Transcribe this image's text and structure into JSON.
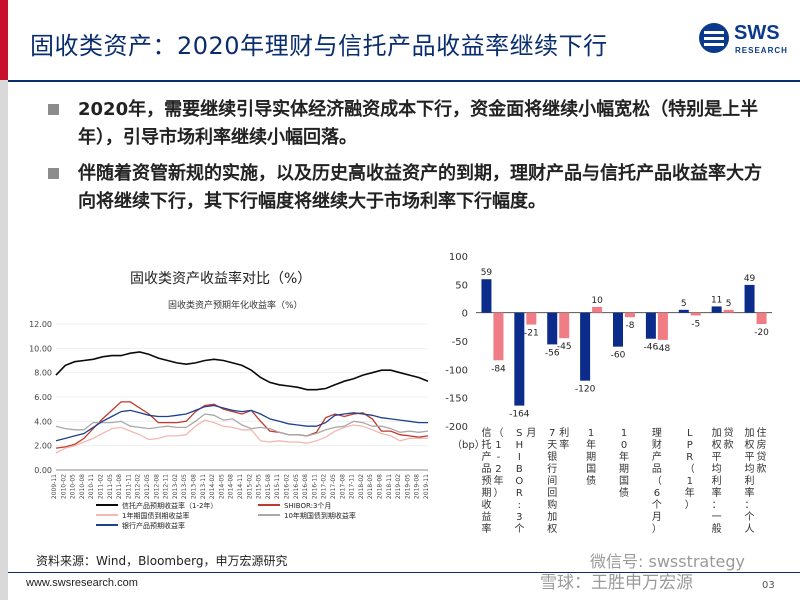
{
  "header": {
    "title": "固收类资产：2020年理财与信托产品收益率继续下行",
    "logo_text": "SWS",
    "logo_sub": "RESEARCH"
  },
  "bullets": [
    "2020年，需要继续引导实体经济融资成本下行，资金面将继续小幅宽松（特别是上半年），引导市场利率继续小幅回落。",
    "伴随着资管新规的实施，以及历史高收益资产的到期，理财产品与信托产品收益率大方向将继续下行，其下行幅度将继续大于市场利率下行幅度。"
  ],
  "footer": {
    "source": "资料来源：Wind，Bloomberg，申万宏源研究",
    "url": "www.swsresearch.com",
    "watermark1": "微信号: swsstrategy",
    "watermark2": "雪球：王胜申万宏源",
    "page": "03"
  },
  "colors": {
    "navy": "#0a2d6e",
    "accent_red": "#c8102e",
    "series_blue": "#0b2c8a",
    "series_pink": "#f07c85"
  },
  "chart_data": [
    {
      "type": "line",
      "title": "固收类资产收益率对比（%）",
      "subtitle": "固收类资产预期年化收益率（%）",
      "ylim": [
        0,
        12
      ],
      "yticks": [
        "0.00",
        "2.00",
        "4.00",
        "6.00",
        "8.00",
        "10.00",
        "12.00"
      ],
      "x": [
        "2009-11",
        "2010-02",
        "2010-05",
        "2010-08",
        "2010-11",
        "2011-02",
        "2011-05",
        "2011-08",
        "2011-11",
        "2012-02",
        "2012-05",
        "2012-08",
        "2012-11",
        "2013-02",
        "2013-05",
        "2013-08",
        "2013-11",
        "2014-02",
        "2014-05",
        "2014-08",
        "2014-11",
        "2015-02",
        "2015-05",
        "2015-08",
        "2015-11",
        "2016-02",
        "2016-05",
        "2016-08",
        "2016-11",
        "2017-02",
        "2017-05",
        "2017-08",
        "2017-11",
        "2018-02",
        "2018-05",
        "2018-08",
        "2018-11",
        "2019-02",
        "2019-05",
        "2019-08",
        "2019-11"
      ],
      "series": [
        {
          "name": "信托产品预期收益率（1-2年）",
          "color": "#0a0a0a",
          "values": [
            7.8,
            8.6,
            8.9,
            9.0,
            9.1,
            9.3,
            9.4,
            9.4,
            9.6,
            9.7,
            9.5,
            9.2,
            9.0,
            8.8,
            8.7,
            8.8,
            9.0,
            9.1,
            9.0,
            8.8,
            8.6,
            8.2,
            7.6,
            7.2,
            7.0,
            6.9,
            6.8,
            6.6,
            6.6,
            6.7,
            7.0,
            7.3,
            7.5,
            7.8,
            8.0,
            8.2,
            8.2,
            8.0,
            7.8,
            7.6,
            7.3
          ]
        },
        {
          "name": "SHIBOR:3个月",
          "color": "#c0392b",
          "values": [
            1.8,
            1.9,
            2.1,
            2.6,
            3.4,
            4.2,
            4.9,
            5.6,
            5.6,
            5.1,
            4.6,
            3.9,
            3.9,
            3.9,
            4.0,
            4.8,
            5.3,
            5.4,
            5.0,
            4.8,
            4.6,
            4.9,
            4.0,
            3.2,
            3.1,
            2.9,
            2.9,
            2.8,
            3.1,
            4.3,
            4.6,
            4.4,
            4.6,
            4.7,
            4.2,
            3.2,
            3.2,
            2.9,
            2.8,
            2.7,
            2.8
          ]
        },
        {
          "name": "1年期国债到期收益率",
          "color": "#f5b7b1",
          "values": [
            1.4,
            1.8,
            2.0,
            2.3,
            2.6,
            3.0,
            3.4,
            3.5,
            3.2,
            2.9,
            2.5,
            2.6,
            2.8,
            2.8,
            2.9,
            3.6,
            4.1,
            3.9,
            3.6,
            3.5,
            3.3,
            3.3,
            2.4,
            2.3,
            2.4,
            2.3,
            2.3,
            2.2,
            2.4,
            2.7,
            3.2,
            3.5,
            3.7,
            3.6,
            3.3,
            3.0,
            2.8,
            2.4,
            2.6,
            2.6,
            2.6
          ]
        },
        {
          "name": "10年期国债到期收益率",
          "color": "#a9a9a9",
          "values": [
            3.6,
            3.4,
            3.3,
            3.3,
            3.9,
            3.9,
            3.9,
            4.0,
            3.6,
            3.5,
            3.4,
            3.5,
            3.6,
            3.5,
            3.5,
            4.0,
            4.6,
            4.5,
            4.1,
            4.2,
            3.7,
            3.4,
            3.5,
            3.4,
            3.1,
            2.9,
            2.9,
            2.8,
            3.0,
            3.3,
            3.5,
            3.6,
            4.0,
            3.9,
            3.6,
            3.6,
            3.4,
            3.1,
            3.2,
            3.1,
            3.2
          ]
        },
        {
          "name": "银行产品预期收益率",
          "color": "#1f3f8f",
          "values": [
            2.4,
            2.6,
            2.8,
            3.0,
            3.5,
            4.0,
            4.4,
            4.8,
            4.9,
            4.7,
            4.5,
            4.4,
            4.4,
            4.5,
            4.6,
            4.9,
            5.2,
            5.3,
            5.1,
            4.9,
            4.8,
            4.9,
            4.6,
            4.2,
            4.0,
            3.8,
            3.7,
            3.6,
            3.6,
            3.9,
            4.5,
            4.6,
            4.7,
            4.6,
            4.5,
            4.3,
            4.2,
            4.1,
            4.0,
            3.9,
            3.9
          ]
        }
      ]
    },
    {
      "type": "bar",
      "ylabel": "（bp）",
      "ylim": [
        -200,
        100
      ],
      "yticks": [
        "100",
        "50",
        "0",
        "-50",
        "-100",
        "-150",
        "-200"
      ],
      "categories": [
        "信托产品预期收益率（1-2年）",
        "SHIBOR:3个月",
        "7天银行间回购加权利率",
        "1年期国债",
        "10年期国债",
        "理财产品（6个月）",
        "LPR（1年）",
        "加权平均利率：一般贷款",
        "加权平均利率：个人住房贷款"
      ],
      "series": [
        {
          "color": "#0b2c8a",
          "values": [
            59,
            -164,
            -56,
            -120,
            -60,
            -46,
            5,
            11,
            49
          ]
        },
        {
          "color": "#f07c85",
          "values": [
            -84,
            -21,
            -45,
            10,
            -8,
            -48,
            -5,
            5,
            -20
          ]
        }
      ]
    }
  ]
}
